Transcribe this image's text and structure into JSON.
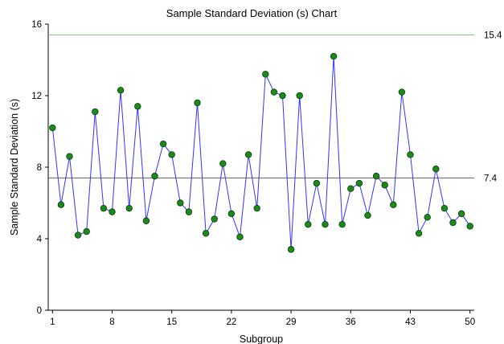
{
  "colors": {
    "line": "#3333ff",
    "marker_fill": "#1a8a1a",
    "marker_stroke": "#0a3a0a",
    "ucl": "#80c080",
    "center": "#606060",
    "axis": "#000000"
  },
  "chart_data": {
    "type": "line",
    "title": "Sample Standard Deviation (s) Chart",
    "xlabel": "Subgroup",
    "ylabel": "Sample Standard Deviation (s)",
    "xlim": [
      0.5,
      50.5
    ],
    "ylim": [
      0,
      16
    ],
    "xticks": [
      1,
      8,
      15,
      22,
      29,
      36,
      43,
      50
    ],
    "yticks": [
      0,
      4,
      8,
      12,
      16
    ],
    "grid": false,
    "reference_lines": [
      {
        "value": 15.4,
        "label": "15.4",
        "kind": "ucl"
      },
      {
        "value": 7.4,
        "label": "7.4",
        "kind": "center"
      }
    ],
    "x": [
      1,
      2,
      3,
      4,
      5,
      6,
      7,
      8,
      9,
      10,
      11,
      12,
      13,
      14,
      15,
      16,
      17,
      18,
      19,
      20,
      21,
      22,
      23,
      24,
      25,
      26,
      27,
      28,
      29,
      30,
      31,
      32,
      33,
      34,
      35,
      36,
      37,
      38,
      39,
      40,
      41,
      42,
      43,
      44,
      45,
      46,
      47,
      48,
      49,
      50
    ],
    "series": [
      {
        "values": [
          10.2,
          5.9,
          8.6,
          4.2,
          4.4,
          11.1,
          5.7,
          5.5,
          12.3,
          5.7,
          11.4,
          5.0,
          7.5,
          9.3,
          8.7,
          6.0,
          5.5,
          11.6,
          4.3,
          5.1,
          8.2,
          5.4,
          4.1,
          8.7,
          5.7,
          13.2,
          12.2,
          12.0,
          3.4,
          12.0,
          4.8,
          7.1,
          4.8,
          14.2,
          4.8,
          6.8,
          7.1,
          5.3,
          7.5,
          7.0,
          5.9,
          12.2,
          8.7,
          4.3,
          5.2,
          7.9,
          5.7,
          4.9,
          5.4,
          4.7
        ]
      }
    ]
  }
}
